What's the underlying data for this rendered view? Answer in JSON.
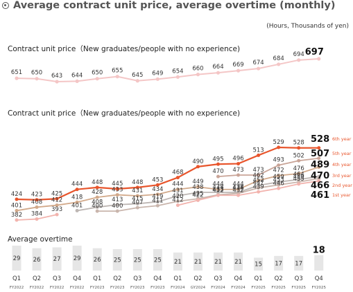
{
  "header": {
    "title": "Average contract unit price, average overtime (monthly)",
    "units": "(Hours, Thousands of yen)"
  },
  "chart_data": [
    {
      "type": "line",
      "title": "Contract unit price（New graduates/people with no experience)",
      "x": [
        "Q1 FY2022",
        "Q2 FY2022",
        "Q3 FY2022",
        "Q4 FY2022",
        "Q1 FY2023",
        "Q2 FY2023",
        "Q3 FY2023",
        "Q4 FY2023",
        "Q1 FY2024",
        "Q2 GY2024",
        "Q3 FY2024",
        "Q4 FY2024",
        "Q1 FY2025",
        "Q2 FY2025",
        "Q3 FY2025",
        "Q4 FY2025"
      ],
      "series": [
        {
          "values": [
            651,
            650,
            643,
            644,
            650,
            655,
            645,
            649,
            654,
            660,
            664,
            669,
            674,
            684,
            694,
            697
          ],
          "color": "#f4c6c6"
        }
      ],
      "last_label": "697"
    },
    {
      "type": "line",
      "title": "Contract unit price（New graduates/people with no experience)",
      "x": [
        "Q1 FY2022",
        "Q2 FY2022",
        "Q3 FY2022",
        "Q4 FY2022",
        "Q1 FY2023",
        "Q2 FY2023",
        "Q3 FY2023",
        "Q4 FY2023",
        "Q1 FY2024",
        "Q2 GY2024",
        "Q3 FY2024",
        "Q4 FY2024",
        "Q1 FY2025",
        "Q2 FY2025",
        "Q3 FY2025",
        "Q4 FY2025"
      ],
      "series": [
        {
          "name": "6th year",
          "color": "#e8552c",
          "values": [
            424,
            423,
            425,
            444,
            448,
            445,
            448,
            453,
            468,
            490,
            495,
            496,
            513,
            529,
            528,
            528
          ]
        },
        {
          "name": "5th year",
          "color": "#c9a497",
          "values": [
            null,
            null,
            null,
            null,
            null,
            null,
            null,
            null,
            null,
            null,
            470,
            473,
            473,
            493,
            502,
            507
          ]
        },
        {
          "name": "4th year",
          "color": "#d2a98a",
          "values": [
            401,
            408,
            412,
            418,
            428,
            433,
            431,
            434,
            444,
            449,
            444,
            444,
            462,
            472,
            476,
            489
          ]
        },
        {
          "name": "3rd year",
          "color": "#bdb6b3",
          "values": [
            null,
            null,
            null,
            401,
            408,
            413,
            415,
            419,
            431,
            438,
            438,
            438,
            452,
            459,
            464,
            470
          ]
        },
        {
          "name": "2nd year",
          "color": "#c9b5ac",
          "values": [
            null,
            null,
            null,
            null,
            400,
            400,
            407,
            411,
            420,
            425,
            433,
            436,
            447,
            453,
            459,
            466
          ]
        },
        {
          "name": "1st year",
          "color": "#f2b3ad",
          "values": [
            382,
            384,
            393,
            null,
            null,
            null,
            null,
            null,
            412,
            422,
            432,
            432,
            439,
            446,
            455,
            461
          ]
        }
      ],
      "last_labels": [
        "528",
        "507",
        "489",
        "470",
        "466",
        "461"
      ]
    },
    {
      "type": "bar",
      "title": "Average overtime",
      "categories": [
        "Q1",
        "Q2",
        "Q3",
        "Q4",
        "Q1",
        "Q2",
        "Q3",
        "Q4",
        "Q1",
        "Q2",
        "Q3",
        "Q4",
        "Q1",
        "Q2",
        "Q3",
        "Q4"
      ],
      "subcategories": [
        "FY2022",
        "FY2022",
        "FY2022",
        "FY2022",
        "FY2023",
        "FY2023",
        "FY2023",
        "FY2023",
        "FY2024",
        "GY2024",
        "FY2024",
        "FY2024",
        "FY2025",
        "FY2025",
        "FY2025",
        "FY2025"
      ],
      "values": [
        29,
        26,
        27,
        29,
        26,
        25,
        25,
        25,
        21,
        21,
        21,
        21,
        15,
        17,
        17,
        18
      ],
      "bar_color": "#e6e6e6"
    }
  ]
}
